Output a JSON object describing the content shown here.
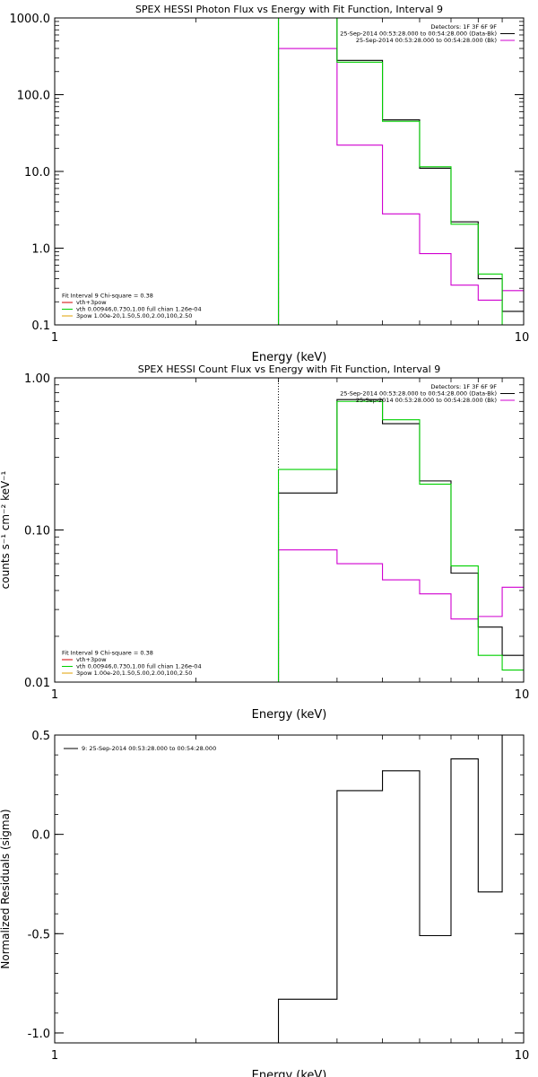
{
  "chart_data": [
    {
      "type": "line",
      "step": true,
      "title": "SPEX HESSI Photon Flux vs Energy with Fit Function, Interval 9",
      "xlabel": "Energy (keV)",
      "ylabel": "",
      "xscale": "log",
      "yscale": "log",
      "xlim": [
        1,
        10
      ],
      "ylim": [
        0.1,
        1000
      ],
      "xticks": [
        1,
        10
      ],
      "xtick_labels": [
        "1",
        "10"
      ],
      "yticks": [
        0.1,
        1,
        10,
        100,
        1000
      ],
      "ytick_labels": [
        "0.1",
        "1.0",
        "10.0",
        "100.0",
        "1000.0"
      ],
      "edges": [
        3,
        4,
        5,
        6,
        7,
        8,
        9,
        10
      ],
      "legend_top": {
        "placement": "top-right",
        "lines": [
          "Detectors: 1F 3F 6F 9F",
          "25-Sep-2014 00:53:28.000 to 00:54:28.000 (Data-Bk)",
          "25-Sep-2014 00:53:28.000 to 00:54:28.000 (Bk)"
        ],
        "colors": [
          "",
          "#000000",
          "#d000d0"
        ]
      },
      "legend_bottom": {
        "placement": "bottom-left",
        "lines": [
          "Fit Interval 9   Chi-square = 0.38",
          "vth+3pow",
          "vth 0.00946,0.730,1.00  full chian 1.26e-04",
          "3pow 1.00e-20,1.50,5.00,2.00,100,2.50"
        ],
        "colors": [
          "",
          "#d00000",
          "#00d000",
          "#e0a000"
        ]
      },
      "series": [
        {
          "name": "Data-Bk",
          "color": "#000000",
          "values": [
            1000,
            280,
            47,
            11,
            2.2,
            0.4,
            0.15
          ]
        },
        {
          "name": "Bk",
          "color": "#d000d0",
          "values": [
            400,
            22,
            2.8,
            0.85,
            0.33,
            0.21,
            0.28
          ]
        },
        {
          "name": "vth+3pow",
          "color": "#00d000",
          "values": [
            1000,
            265,
            45,
            11.5,
            2.05,
            0.46,
            0.1
          ]
        }
      ],
      "vline": {
        "x": 3,
        "color": "#00d000",
        "style": "dashed"
      }
    },
    {
      "type": "line",
      "step": true,
      "title": "SPEX HESSI Count Flux vs Energy with Fit Function, Interval 9",
      "xlabel": "Energy (keV)",
      "ylabel": "counts s⁻¹ cm⁻² keV⁻¹",
      "xscale": "log",
      "yscale": "log",
      "xlim": [
        1,
        10
      ],
      "ylim": [
        0.01,
        1
      ],
      "xticks": [
        1,
        10
      ],
      "xtick_labels": [
        "1",
        "10"
      ],
      "yticks": [
        0.01,
        0.1,
        1
      ],
      "ytick_labels": [
        "0.01",
        "0.10",
        "1.00"
      ],
      "edges": [
        3,
        4,
        5,
        6,
        7,
        8,
        9,
        10
      ],
      "legend_top": {
        "placement": "top-right",
        "lines": [
          "Detectors: 1F 3F 6F 9F",
          "25-Sep-2014 00:53:28.000 to 00:54:28.000 (Data-Bk)",
          "25-Sep-2014 00:53:28.000 to 00:54:28.000 (Bk)"
        ],
        "colors": [
          "",
          "#000000",
          "#d000d0"
        ]
      },
      "legend_bottom": {
        "placement": "bottom-left",
        "lines": [
          "Fit Interval 9   Chi-square = 0.38",
          "vth+3pow",
          "vth 0.00946,0.730,1.00  full chian 1.26e-04",
          "3pow 1.00e-20,1.50,5.00,2.00,100,2.50"
        ],
        "colors": [
          "",
          "#d00000",
          "#00d000",
          "#e0a000"
        ]
      },
      "series": [
        {
          "name": "Data-Bk",
          "color": "#000000",
          "values": [
            0.175,
            0.72,
            0.5,
            0.21,
            0.052,
            0.023,
            0.015
          ]
        },
        {
          "name": "Bk",
          "color": "#d000d0",
          "values": [
            0.074,
            0.06,
            0.047,
            0.038,
            0.026,
            0.027,
            0.042
          ]
        },
        {
          "name": "vth+3pow",
          "color": "#00d000",
          "values": [
            0.25,
            0.7,
            0.53,
            0.2,
            0.058,
            0.015,
            0.012
          ]
        }
      ],
      "vline": {
        "x": 3,
        "color": "#000000",
        "style": "dotted"
      }
    },
    {
      "type": "line",
      "step": true,
      "title": "",
      "xlabel": "Energy (keV)",
      "ylabel": "Normalized Residuals (sigma)",
      "xscale": "log",
      "yscale": "linear",
      "xlim": [
        1,
        10
      ],
      "ylim": [
        -1.05,
        0.5
      ],
      "xticks": [
        1,
        10
      ],
      "xtick_labels": [
        "1",
        "10"
      ],
      "yticks": [
        -1.0,
        -0.5,
        0.0,
        0.5
      ],
      "ytick_labels": [
        "-1.0",
        "-0.5",
        "0.0",
        "0.5"
      ],
      "edges": [
        3,
        4,
        5,
        6,
        7,
        8,
        9,
        10
      ],
      "legend_top": {
        "placement": "top-left",
        "lines": [
          "9: 25-Sep-2014 00:53:28.000 to 00:54:28.000"
        ],
        "colors": [
          "#000000"
        ]
      },
      "series": [
        {
          "name": "9: 25-Sep-2014 00:53:28.000 to 00:54:28.000",
          "color": "#000000",
          "values": [
            -0.83,
            0.22,
            0.32,
            -0.51,
            0.38,
            -0.29,
            0.5
          ]
        }
      ]
    }
  ]
}
